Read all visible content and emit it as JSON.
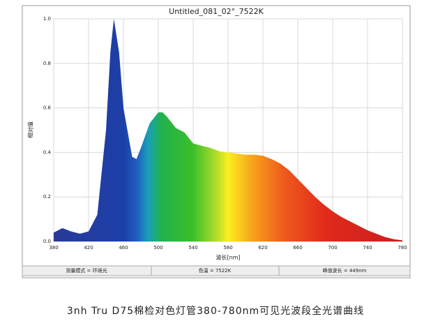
{
  "chart_data": {
    "type": "area",
    "title": "Untitled_081_02°_7522K",
    "x_label": "波长[nm]",
    "y_label": "相对值",
    "x": [
      380,
      390,
      400,
      410,
      420,
      430,
      440,
      445,
      449,
      455,
      460,
      470,
      475,
      480,
      490,
      500,
      505,
      510,
      520,
      530,
      540,
      550,
      560,
      570,
      580,
      590,
      600,
      610,
      620,
      630,
      640,
      650,
      660,
      670,
      680,
      690,
      700,
      710,
      720,
      730,
      740,
      750,
      760,
      770,
      780
    ],
    "values": [
      0.04,
      0.06,
      0.045,
      0.035,
      0.045,
      0.12,
      0.5,
      0.85,
      1.0,
      0.85,
      0.6,
      0.38,
      0.37,
      0.42,
      0.53,
      0.58,
      0.58,
      0.56,
      0.51,
      0.49,
      0.44,
      0.43,
      0.42,
      0.405,
      0.4,
      0.395,
      0.39,
      0.39,
      0.385,
      0.37,
      0.35,
      0.32,
      0.28,
      0.24,
      0.2,
      0.165,
      0.135,
      0.11,
      0.09,
      0.07,
      0.05,
      0.035,
      0.02,
      0.01,
      0.005
    ],
    "xlim": [
      380,
      780
    ],
    "xticks": [
      380,
      420,
      460,
      500,
      540,
      580,
      620,
      660,
      700,
      740,
      780
    ],
    "ylim": [
      0,
      1
    ],
    "yticks": [
      {
        "value": 0,
        "label": "0.0"
      },
      {
        "value": 0.2,
        "label": "0.2"
      },
      {
        "value": 0.4,
        "label": "0.4"
      },
      {
        "value": 0.6,
        "label": "0.6"
      },
      {
        "value": 0.8,
        "label": "0.8"
      },
      {
        "value": 1,
        "label": "1.0"
      }
    ],
    "grid": true,
    "status": [
      "测量模式 = 环境光",
      "色温 = 7522K",
      "峰值波长 = 449nm"
    ],
    "caption": "3nh Tru D75棉检对色灯管380-780nm可见光波段全光谱曲线"
  }
}
